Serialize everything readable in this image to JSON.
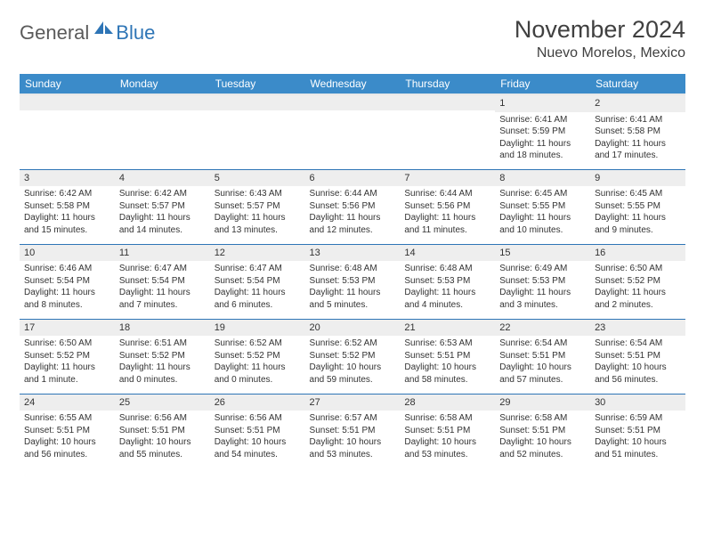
{
  "logo": {
    "general": "General",
    "blue": "Blue"
  },
  "title": "November 2024",
  "location": "Nuevo Morelos, Mexico",
  "colors": {
    "header_bg": "#3b8bc9",
    "header_text": "#ffffff",
    "row_divider": "#2e75b6",
    "daynum_bg": "#eeeeee",
    "text": "#333333",
    "logo_gray": "#5a5a5a",
    "logo_blue": "#2e75b6"
  },
  "weekdays": [
    "Sunday",
    "Monday",
    "Tuesday",
    "Wednesday",
    "Thursday",
    "Friday",
    "Saturday"
  ],
  "weeks": [
    [
      {
        "day": "",
        "sunrise": "",
        "sunset": "",
        "daylight": ""
      },
      {
        "day": "",
        "sunrise": "",
        "sunset": "",
        "daylight": ""
      },
      {
        "day": "",
        "sunrise": "",
        "sunset": "",
        "daylight": ""
      },
      {
        "day": "",
        "sunrise": "",
        "sunset": "",
        "daylight": ""
      },
      {
        "day": "",
        "sunrise": "",
        "sunset": "",
        "daylight": ""
      },
      {
        "day": "1",
        "sunrise": "Sunrise: 6:41 AM",
        "sunset": "Sunset: 5:59 PM",
        "daylight": "Daylight: 11 hours and 18 minutes."
      },
      {
        "day": "2",
        "sunrise": "Sunrise: 6:41 AM",
        "sunset": "Sunset: 5:58 PM",
        "daylight": "Daylight: 11 hours and 17 minutes."
      }
    ],
    [
      {
        "day": "3",
        "sunrise": "Sunrise: 6:42 AM",
        "sunset": "Sunset: 5:58 PM",
        "daylight": "Daylight: 11 hours and 15 minutes."
      },
      {
        "day": "4",
        "sunrise": "Sunrise: 6:42 AM",
        "sunset": "Sunset: 5:57 PM",
        "daylight": "Daylight: 11 hours and 14 minutes."
      },
      {
        "day": "5",
        "sunrise": "Sunrise: 6:43 AM",
        "sunset": "Sunset: 5:57 PM",
        "daylight": "Daylight: 11 hours and 13 minutes."
      },
      {
        "day": "6",
        "sunrise": "Sunrise: 6:44 AM",
        "sunset": "Sunset: 5:56 PM",
        "daylight": "Daylight: 11 hours and 12 minutes."
      },
      {
        "day": "7",
        "sunrise": "Sunrise: 6:44 AM",
        "sunset": "Sunset: 5:56 PM",
        "daylight": "Daylight: 11 hours and 11 minutes."
      },
      {
        "day": "8",
        "sunrise": "Sunrise: 6:45 AM",
        "sunset": "Sunset: 5:55 PM",
        "daylight": "Daylight: 11 hours and 10 minutes."
      },
      {
        "day": "9",
        "sunrise": "Sunrise: 6:45 AM",
        "sunset": "Sunset: 5:55 PM",
        "daylight": "Daylight: 11 hours and 9 minutes."
      }
    ],
    [
      {
        "day": "10",
        "sunrise": "Sunrise: 6:46 AM",
        "sunset": "Sunset: 5:54 PM",
        "daylight": "Daylight: 11 hours and 8 minutes."
      },
      {
        "day": "11",
        "sunrise": "Sunrise: 6:47 AM",
        "sunset": "Sunset: 5:54 PM",
        "daylight": "Daylight: 11 hours and 7 minutes."
      },
      {
        "day": "12",
        "sunrise": "Sunrise: 6:47 AM",
        "sunset": "Sunset: 5:54 PM",
        "daylight": "Daylight: 11 hours and 6 minutes."
      },
      {
        "day": "13",
        "sunrise": "Sunrise: 6:48 AM",
        "sunset": "Sunset: 5:53 PM",
        "daylight": "Daylight: 11 hours and 5 minutes."
      },
      {
        "day": "14",
        "sunrise": "Sunrise: 6:48 AM",
        "sunset": "Sunset: 5:53 PM",
        "daylight": "Daylight: 11 hours and 4 minutes."
      },
      {
        "day": "15",
        "sunrise": "Sunrise: 6:49 AM",
        "sunset": "Sunset: 5:53 PM",
        "daylight": "Daylight: 11 hours and 3 minutes."
      },
      {
        "day": "16",
        "sunrise": "Sunrise: 6:50 AM",
        "sunset": "Sunset: 5:52 PM",
        "daylight": "Daylight: 11 hours and 2 minutes."
      }
    ],
    [
      {
        "day": "17",
        "sunrise": "Sunrise: 6:50 AM",
        "sunset": "Sunset: 5:52 PM",
        "daylight": "Daylight: 11 hours and 1 minute."
      },
      {
        "day": "18",
        "sunrise": "Sunrise: 6:51 AM",
        "sunset": "Sunset: 5:52 PM",
        "daylight": "Daylight: 11 hours and 0 minutes."
      },
      {
        "day": "19",
        "sunrise": "Sunrise: 6:52 AM",
        "sunset": "Sunset: 5:52 PM",
        "daylight": "Daylight: 11 hours and 0 minutes."
      },
      {
        "day": "20",
        "sunrise": "Sunrise: 6:52 AM",
        "sunset": "Sunset: 5:52 PM",
        "daylight": "Daylight: 10 hours and 59 minutes."
      },
      {
        "day": "21",
        "sunrise": "Sunrise: 6:53 AM",
        "sunset": "Sunset: 5:51 PM",
        "daylight": "Daylight: 10 hours and 58 minutes."
      },
      {
        "day": "22",
        "sunrise": "Sunrise: 6:54 AM",
        "sunset": "Sunset: 5:51 PM",
        "daylight": "Daylight: 10 hours and 57 minutes."
      },
      {
        "day": "23",
        "sunrise": "Sunrise: 6:54 AM",
        "sunset": "Sunset: 5:51 PM",
        "daylight": "Daylight: 10 hours and 56 minutes."
      }
    ],
    [
      {
        "day": "24",
        "sunrise": "Sunrise: 6:55 AM",
        "sunset": "Sunset: 5:51 PM",
        "daylight": "Daylight: 10 hours and 56 minutes."
      },
      {
        "day": "25",
        "sunrise": "Sunrise: 6:56 AM",
        "sunset": "Sunset: 5:51 PM",
        "daylight": "Daylight: 10 hours and 55 minutes."
      },
      {
        "day": "26",
        "sunrise": "Sunrise: 6:56 AM",
        "sunset": "Sunset: 5:51 PM",
        "daylight": "Daylight: 10 hours and 54 minutes."
      },
      {
        "day": "27",
        "sunrise": "Sunrise: 6:57 AM",
        "sunset": "Sunset: 5:51 PM",
        "daylight": "Daylight: 10 hours and 53 minutes."
      },
      {
        "day": "28",
        "sunrise": "Sunrise: 6:58 AM",
        "sunset": "Sunset: 5:51 PM",
        "daylight": "Daylight: 10 hours and 53 minutes."
      },
      {
        "day": "29",
        "sunrise": "Sunrise: 6:58 AM",
        "sunset": "Sunset: 5:51 PM",
        "daylight": "Daylight: 10 hours and 52 minutes."
      },
      {
        "day": "30",
        "sunrise": "Sunrise: 6:59 AM",
        "sunset": "Sunset: 5:51 PM",
        "daylight": "Daylight: 10 hours and 51 minutes."
      }
    ]
  ]
}
